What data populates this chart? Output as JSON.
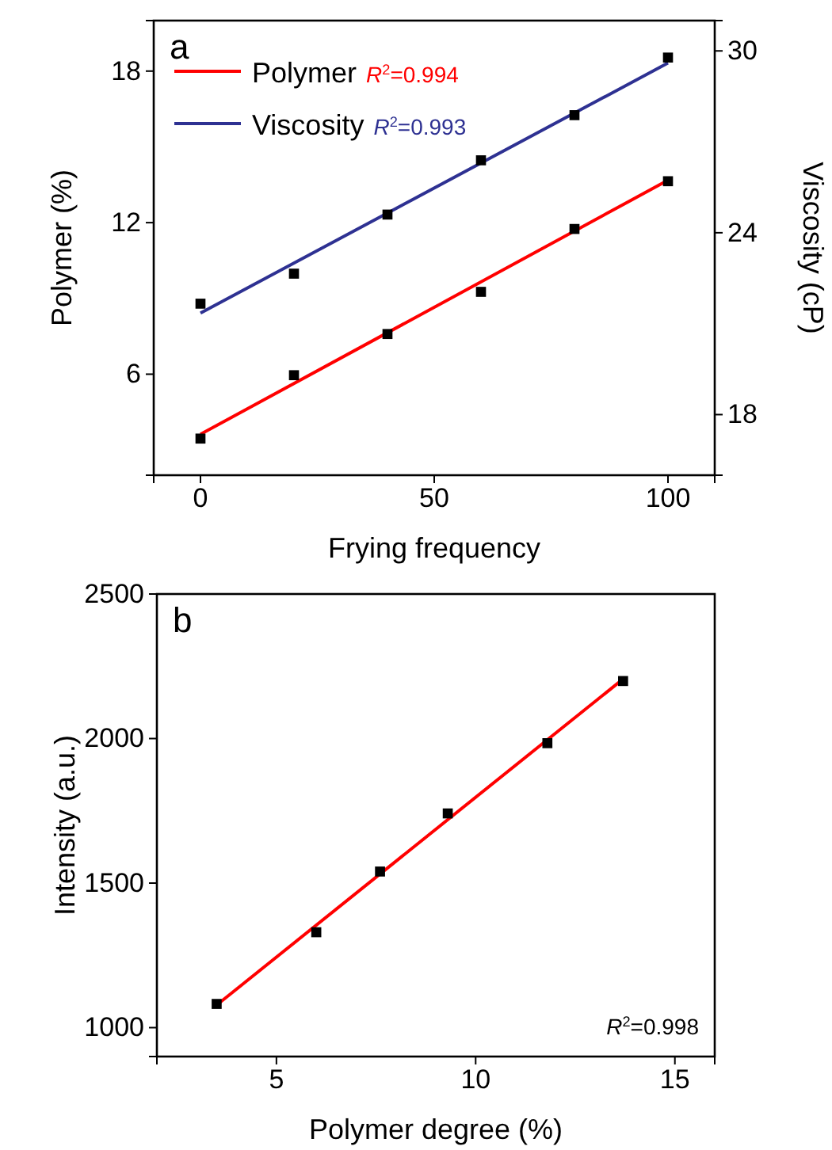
{
  "chart_data": [
    {
      "type": "scatter",
      "title": "a",
      "xlabel": "Frying frequency",
      "ylabel": "Polymer (%)",
      "y2label": "Viscosity (cP)",
      "xlim": [
        -10,
        110
      ],
      "xticks": [
        0,
        50,
        100
      ],
      "ylim": [
        2,
        20
      ],
      "yticks": [
        6,
        12,
        18
      ],
      "y2lim": [
        16,
        31
      ],
      "y2ticks": [
        18,
        24,
        30
      ],
      "legend": "top left",
      "grid": false,
      "annotations": [
        "R$^{2}$=0.994",
        "R$^{2}$=0.993"
      ],
      "series": [
        {
          "marker": "square",
          "color": "#000000",
          "x": [
            0,
            20,
            40,
            60,
            80,
            100
          ],
          "values": [
            3.45,
            5.96,
            7.59,
            9.26,
            11.75,
            13.64
          ]
        },
        {
          "marker": "square",
          "axis": "y2",
          "color": "#000000",
          "x": [
            0,
            20,
            40,
            60,
            80,
            100
          ],
          "values": [
            21.66,
            22.65,
            24.6,
            26.39,
            27.88,
            29.78
          ]
        },
        {
          "type": "line",
          "name": "Polymer",
          "color": "#ff0000",
          "x": [
            0,
            100
          ],
          "values": [
            3.62,
            13.68
          ]
        },
        {
          "type": "line",
          "name": "Viscosity",
          "axis": "y2",
          "color": "#2e3192",
          "x": [
            0,
            100
          ],
          "values": [
            21.35,
            29.6
          ]
        }
      ]
    },
    {
      "type": "scatter",
      "title": "b",
      "xlabel": "Polymer degree (%)",
      "ylabel": "Intensity (a.u.)",
      "xlim": [
        2,
        16
      ],
      "xticks": [
        5,
        10,
        15
      ],
      "ylim": [
        900,
        2500
      ],
      "yticks": [
        1000,
        1500,
        2000,
        2500
      ],
      "legend": false,
      "grid": false,
      "annotations": [
        "R$^{2}$=0.998"
      ],
      "series": [
        {
          "marker": "square",
          "color": "#000000",
          "x": [
            3.5,
            6.0,
            7.6,
            9.3,
            11.8,
            13.7
          ],
          "values": [
            1082,
            1330,
            1540,
            1741,
            1984,
            2199
          ]
        },
        {
          "type": "line",
          "color": "#ff0000",
          "x": [
            3.5,
            13.6
          ],
          "values": [
            1078,
            2195
          ]
        }
      ]
    }
  ]
}
